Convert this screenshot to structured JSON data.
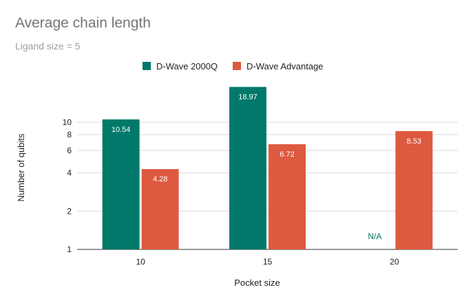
{
  "chart_data": {
    "type": "bar",
    "title": "Average chain length",
    "subtitle": "Ligand size = 5",
    "xlabel": "Pocket size",
    "ylabel": "Number of qubits",
    "categories": [
      "10",
      "15",
      "20"
    ],
    "y_scale": "log",
    "ylim": [
      1,
      20
    ],
    "yticks": [
      1,
      2,
      4,
      6,
      8,
      10
    ],
    "grid": true,
    "legend_position": "top-center",
    "series": [
      {
        "name": "D-Wave 2000Q",
        "color": "#00796b",
        "values": [
          10.54,
          18.97,
          null
        ],
        "labels": [
          "10.54",
          "18.97",
          "N/A"
        ]
      },
      {
        "name": "D-Wave Advantage",
        "color": "#dd5a40",
        "values": [
          4.28,
          6.72,
          8.53
        ],
        "labels": [
          "4.28",
          "6.72",
          "8.53"
        ]
      }
    ]
  }
}
